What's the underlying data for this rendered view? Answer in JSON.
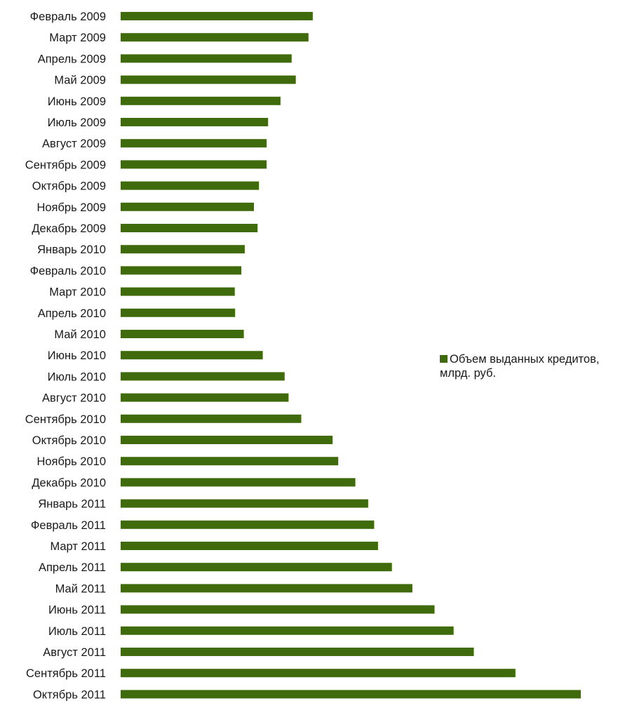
{
  "chart_data": {
    "type": "bar",
    "orientation": "horizontal",
    "categories": [
      "Февраль 2009",
      "Март 2009",
      "Апрель 2009",
      "Май 2009",
      "Июнь 2009",
      "Июль 2009",
      "Август 2009",
      "Сентябрь 2009",
      "Октябрь 2009",
      "Ноябрь 2009",
      "Декабрь 2009",
      "Январь 2010",
      "Февраль 2010",
      "Март 2010",
      "Апрель 2010",
      "Май 2010",
      "Июнь 2010",
      "Июль 2010",
      "Август 2010",
      "Сентябрь 2010",
      "Октябрь 2010",
      "Ноябрь 2010",
      "Декабрь 2010",
      "Январь 2011",
      "Февраль 2011",
      "Март 2011",
      "Апрель 2011",
      "Май 2011",
      "Июнь 2011",
      "Июль 2011",
      "Август 2011",
      "Сентябрь 2011",
      "Октябрь 2011"
    ],
    "series": [
      {
        "name": "Объем выданных кредитов, млрд. руб.",
        "color": "#3f6b0d",
        "values": [
          1257,
          1229,
          1119,
          1146,
          1046,
          965,
          955,
          955,
          905,
          872,
          896,
          812,
          790,
          747,
          749,
          806,
          930,
          1073,
          1099,
          1182,
          1387,
          1424,
          1536,
          1620,
          1659,
          1684,
          1775,
          1909,
          2054,
          2179,
          2311,
          2583,
          3011
        ]
      }
    ],
    "title": "",
    "xlabel": "",
    "ylabel": "",
    "xaxis_visible": false,
    "legend_position": "right"
  }
}
